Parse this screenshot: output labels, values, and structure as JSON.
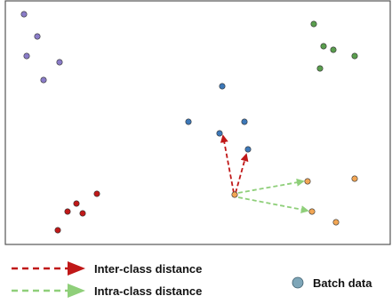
{
  "colors": {
    "purple": "#8a7cc8",
    "green": "#5a9e4e",
    "blue": "#3d78b8",
    "red": "#c01818",
    "orange": "#f2a654",
    "inter_arrow": "#c01818",
    "intra_arrow": "#8fcf7a",
    "batch_marker": "#7ea6b8"
  },
  "legend": {
    "inter_label": "Inter-class distance",
    "intra_label": "Intra-class distance",
    "batch_label": "Batch data"
  }
}
